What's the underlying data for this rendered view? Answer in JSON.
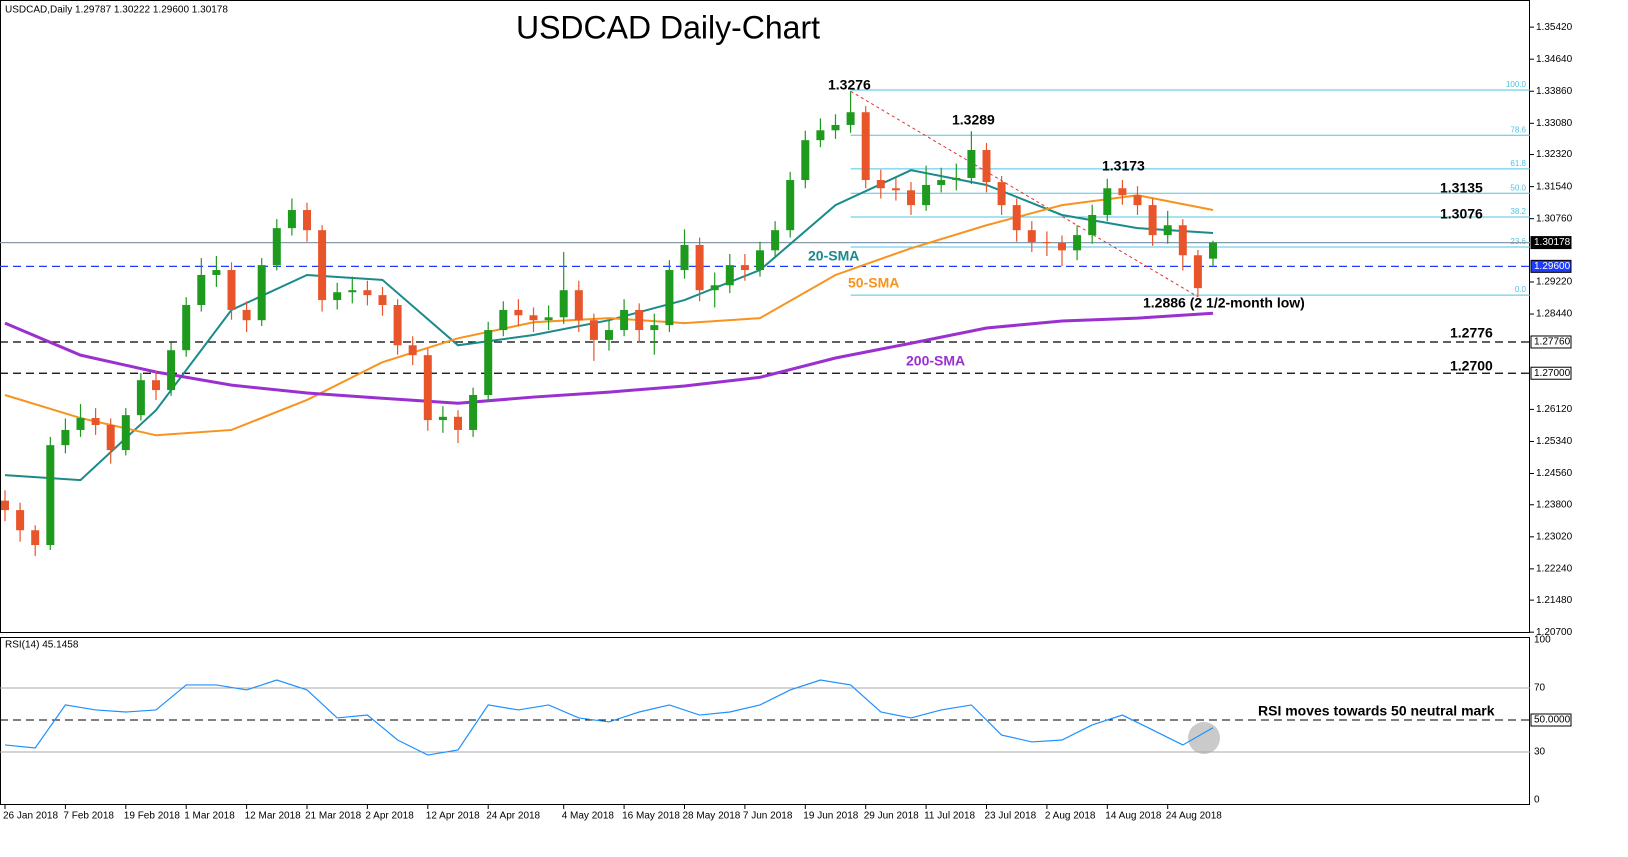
{
  "chart_data": {
    "type": "candlestick",
    "title": "USDCAD Daily-Chart",
    "info_label": "USDCAD,Daily  1.29787 1.30222 1.29600 1.30178",
    "categories": [
      "26 Jan 2018",
      null,
      null,
      null,
      "7 Feb 2018",
      null,
      null,
      null,
      "19 Feb 2018",
      null,
      null,
      null,
      "1 Mar 2018",
      null,
      null,
      null,
      "12 Mar 2018",
      null,
      null,
      null,
      "21 Mar 2018",
      null,
      null,
      null,
      "2 Apr 2018",
      null,
      null,
      null,
      "12 Apr 2018",
      null,
      null,
      null,
      "24 Apr 2018",
      null,
      null,
      null,
      null,
      "4 May 2018",
      null,
      null,
      null,
      "16 May 2018",
      null,
      null,
      null,
      "28 May 2018",
      null,
      null,
      null,
      "7 Jun 2018",
      null,
      null,
      null,
      "19 Jun 2018",
      null,
      null,
      null,
      "29 Jun 2018",
      null,
      null,
      null,
      "11 Jul 2018",
      null,
      null,
      null,
      "23 Jul 2018",
      null,
      null,
      null,
      "2 Aug 2018",
      null,
      null,
      null,
      "14 Aug 2018",
      null,
      null,
      null,
      "24 Aug 2018",
      null,
      null,
      null
    ],
    "candles": {
      "open": [
        1.239,
        1.2367,
        1.2318,
        1.2282,
        1.2525,
        1.2562,
        1.2591,
        1.2574,
        1.2513,
        1.2598,
        1.2683,
        1.2659,
        1.2756,
        1.2866,
        1.2939,
        1.2951,
        1.2854,
        1.2829,
        1.2963,
        1.3053,
        1.3097,
        1.3048,
        1.2878,
        1.2897,
        1.2902,
        1.289,
        1.2866,
        1.2768,
        1.2744,
        1.2586,
        1.2594,
        1.2562,
        1.2647,
        1.2805,
        1.2854,
        1.2841,
        1.2829,
        1.2836,
        1.2902,
        1.2829,
        1.2781,
        1.2805,
        1.2854,
        1.2805,
        1.2817,
        1.2951,
        1.3012,
        1.2902,
        1.2914,
        1.2963,
        1.2951,
        1.2999,
        1.3048,
        1.317,
        1.3267,
        1.3291,
        1.3304,
        1.3335,
        1.317,
        1.315,
        1.3145,
        1.3109,
        1.3158,
        1.317,
        1.3175,
        1.3243,
        1.3165,
        1.3109,
        1.3048,
        1.3019,
        1.3017,
        1.2999,
        1.3036,
        1.3085,
        1.315,
        1.3133,
        1.3109,
        1.3036,
        1.306,
        1.2987,
        1.29787
      ],
      "high": [
        1.2415,
        1.2385,
        1.233,
        1.2545,
        1.259,
        1.2625,
        1.2615,
        1.259,
        1.2615,
        1.27,
        1.2705,
        1.2775,
        1.2885,
        1.298,
        1.2985,
        1.297,
        1.2875,
        1.298,
        1.3075,
        1.3125,
        1.3115,
        1.306,
        1.292,
        1.2935,
        1.2925,
        1.291,
        1.288,
        1.279,
        1.276,
        1.262,
        1.261,
        1.2665,
        1.2825,
        1.2875,
        1.288,
        1.286,
        1.2865,
        1.2995,
        1.2925,
        1.2845,
        1.283,
        1.288,
        1.287,
        1.2845,
        1.2975,
        1.305,
        1.303,
        1.2945,
        1.299,
        1.299,
        1.302,
        1.307,
        1.319,
        1.329,
        1.332,
        1.333,
        1.3386,
        1.335,
        1.3195,
        1.3175,
        1.3165,
        1.3205,
        1.32,
        1.321,
        1.3289,
        1.326,
        1.318,
        1.3125,
        1.307,
        1.3045,
        1.3035,
        1.306,
        1.311,
        1.3173,
        1.317,
        1.3155,
        1.3125,
        1.3095,
        1.3075,
        1.3,
        1.30222
      ],
      "low": [
        1.234,
        1.229,
        1.2255,
        1.227,
        1.2505,
        1.2545,
        1.255,
        1.248,
        1.25,
        1.2585,
        1.2635,
        1.2645,
        1.274,
        1.285,
        1.291,
        1.283,
        1.28,
        1.2815,
        1.295,
        1.3035,
        1.302,
        1.285,
        1.2855,
        1.287,
        1.2865,
        1.284,
        1.2745,
        1.272,
        1.256,
        1.2555,
        1.253,
        1.2545,
        1.263,
        1.279,
        1.2815,
        1.28,
        1.2805,
        1.282,
        1.28,
        1.273,
        1.2755,
        1.279,
        1.2775,
        1.2745,
        1.28,
        1.293,
        1.2875,
        1.286,
        1.2895,
        1.2925,
        1.2935,
        1.298,
        1.303,
        1.315,
        1.325,
        1.327,
        1.3285,
        1.315,
        1.3125,
        1.312,
        1.3085,
        1.3095,
        1.314,
        1.3145,
        1.316,
        1.314,
        1.3085,
        1.302,
        1.2995,
        1.2985,
        1.296,
        1.2975,
        1.3015,
        1.307,
        1.311,
        1.3085,
        1.301,
        1.3015,
        1.295,
        1.2886,
        1.296
      ],
      "close": [
        1.2367,
        1.2318,
        1.2282,
        1.2525,
        1.2562,
        1.2591,
        1.2574,
        1.2513,
        1.2598,
        1.2683,
        1.2659,
        1.2756,
        1.2866,
        1.2939,
        1.2951,
        1.2854,
        1.2829,
        1.2963,
        1.3053,
        1.3097,
        1.3048,
        1.2878,
        1.2897,
        1.2902,
        1.289,
        1.2866,
        1.2768,
        1.2744,
        1.2586,
        1.2594,
        1.2562,
        1.2647,
        1.2805,
        1.2854,
        1.2841,
        1.2829,
        1.2836,
        1.2902,
        1.2829,
        1.2781,
        1.2805,
        1.2854,
        1.2805,
        1.2817,
        1.2951,
        1.3012,
        1.2902,
        1.2914,
        1.2963,
        1.2951,
        1.2999,
        1.3048,
        1.317,
        1.3267,
        1.3291,
        1.3304,
        1.3335,
        1.317,
        1.315,
        1.3145,
        1.3109,
        1.3158,
        1.317,
        1.3175,
        1.3243,
        1.3165,
        1.3109,
        1.3048,
        1.3019,
        1.3017,
        1.2999,
        1.3036,
        1.3085,
        1.315,
        1.3133,
        1.3109,
        1.3036,
        1.306,
        1.2987,
        1.2907,
        1.30178
      ]
    },
    "up_color": "#1e9a1e",
    "down_color": "#e8552b",
    "ylim": [
      1.2068,
      1.3608
    ],
    "yticks": [
      {
        "value": 1.3542,
        "label": "1.35420"
      },
      {
        "value": 1.3464,
        "label": "1.34640"
      },
      {
        "value": 1.3386,
        "label": "1.33860"
      },
      {
        "value": 1.3308,
        "label": "1.33080"
      },
      {
        "value": 1.3232,
        "label": "1.32320"
      },
      {
        "value": 1.3154,
        "label": "1.31540"
      },
      {
        "value": 1.3076,
        "label": "1.30760"
      },
      {
        "value": 1.2922,
        "label": "1.29220"
      },
      {
        "value": 1.2844,
        "label": "1.28440"
      },
      {
        "value": 1.2612,
        "label": "1.26120"
      },
      {
        "value": 1.2534,
        "label": "1.25340"
      },
      {
        "value": 1.2456,
        "label": "1.24560"
      },
      {
        "value": 1.238,
        "label": "1.23800"
      },
      {
        "value": 1.2302,
        "label": "1.23020"
      },
      {
        "value": 1.2224,
        "label": "1.22240"
      },
      {
        "value": 1.2148,
        "label": "1.21480"
      },
      {
        "value": 1.207,
        "label": "1.20700"
      }
    ],
    "series": [
      {
        "name": "20-SMA",
        "color": "#1a8a8a",
        "x": [
          0,
          5,
          10,
          15,
          20,
          25,
          30,
          35,
          40,
          45,
          50,
          55,
          60,
          65,
          70,
          75,
          80
        ],
        "values": [
          1.2452,
          1.244,
          1.261,
          1.2854,
          1.2939,
          1.2927,
          1.2768,
          1.2793,
          1.2829,
          1.2878,
          1.2951,
          1.3109,
          1.3194,
          1.3158,
          1.3085,
          1.3053,
          1.3041
        ]
      },
      {
        "name": "50-SMA",
        "color": "#f7931e",
        "x": [
          0,
          5,
          10,
          15,
          20,
          25,
          30,
          35,
          40,
          45,
          50,
          55,
          60,
          65,
          70,
          75,
          80
        ],
        "values": [
          1.2647,
          1.2591,
          1.2549,
          1.2562,
          1.2635,
          1.2727,
          1.2785,
          1.2824,
          1.2834,
          1.2822,
          1.2834,
          1.2939,
          1.3004,
          1.306,
          1.3109,
          1.3133,
          1.3097
        ]
      },
      {
        "name": "200-SMA",
        "color": "#9b30d0",
        "x": [
          0,
          5,
          10,
          15,
          20,
          25,
          30,
          35,
          40,
          45,
          50,
          55,
          60,
          65,
          70,
          75,
          80
        ],
        "values": [
          1.2822,
          1.2744,
          1.2703,
          1.2671,
          1.2652,
          1.2639,
          1.2627,
          1.2642,
          1.2654,
          1.2669,
          1.269,
          1.2737,
          1.2773,
          1.281,
          1.2827,
          1.2834,
          1.2846
        ]
      }
    ],
    "levels": [
      {
        "value": 1.30178,
        "label": "1.30178",
        "line_color": "#8899aa",
        "box_fill": "#000000",
        "text_color": "#ffffff",
        "dashed": false
      },
      {
        "value": 1.296,
        "label": "1.29600",
        "line_color": "#1e3cff",
        "box_fill": "#1e3cff",
        "text_color": "#ffffff",
        "dashed": true
      },
      {
        "value": 1.2776,
        "label": "1.27760",
        "line_color": "#000000",
        "box_fill": "#ffffff",
        "text_color": "#000000",
        "dashed": true
      },
      {
        "value": 1.27,
        "label": "1.27000",
        "line_color": "#000000",
        "box_fill": "#ffffff",
        "text_color": "#000000",
        "dashed": true
      }
    ],
    "fib": {
      "color": "#4fc3e6",
      "levels": [
        {
          "label": "100.0",
          "value": 1.3389
        },
        {
          "label": "78.6",
          "value": 1.3279
        },
        {
          "label": "61.8",
          "value": 1.3197
        },
        {
          "label": "50.0",
          "value": 1.3138
        },
        {
          "label": "38.2",
          "value": 1.308
        },
        {
          "label": "23.6",
          "value": 1.3007
        },
        {
          "label": "0.0",
          "value": 1.289
        }
      ]
    },
    "annotations": [
      "1.3276",
      "1.3289",
      "1.3173",
      "1.3135",
      "1.3076",
      "1.2886 (2 1/2-month low)",
      "1.2776",
      "1.2700",
      "RSI moves towards 50 neutral mark"
    ],
    "rsi": {
      "label": "RSI(14) 45.1458",
      "color": "#1e90ff",
      "x": [
        0,
        2,
        4,
        6,
        8,
        10,
        12,
        14,
        16,
        18,
        20,
        22,
        24,
        26,
        28,
        30,
        32,
        34,
        36,
        38,
        40,
        42,
        44,
        46,
        48,
        50,
        52,
        54,
        56,
        58,
        60,
        62,
        64,
        66,
        68,
        70,
        72,
        74,
        76,
        78,
        80
      ],
      "values": [
        34.4,
        32.5,
        59.4,
        56.3,
        55,
        56.3,
        71.9,
        71.9,
        68.8,
        75,
        68.8,
        51.3,
        53.1,
        37.5,
        28.1,
        31.3,
        59.4,
        56.3,
        59.4,
        51.3,
        48.8,
        55,
        59.4,
        53.1,
        55,
        59.4,
        68.8,
        75,
        71.9,
        55,
        51.3,
        56.3,
        59.4,
        40.6,
        36.3,
        37.5,
        46.9,
        53.1,
        43.8,
        34.4,
        45.1458
      ],
      "ylim": [
        0,
        100
      ],
      "yticks": [
        100,
        70,
        {
          "value": 50,
          "label": "50.0000"
        },
        30,
        0
      ]
    }
  }
}
